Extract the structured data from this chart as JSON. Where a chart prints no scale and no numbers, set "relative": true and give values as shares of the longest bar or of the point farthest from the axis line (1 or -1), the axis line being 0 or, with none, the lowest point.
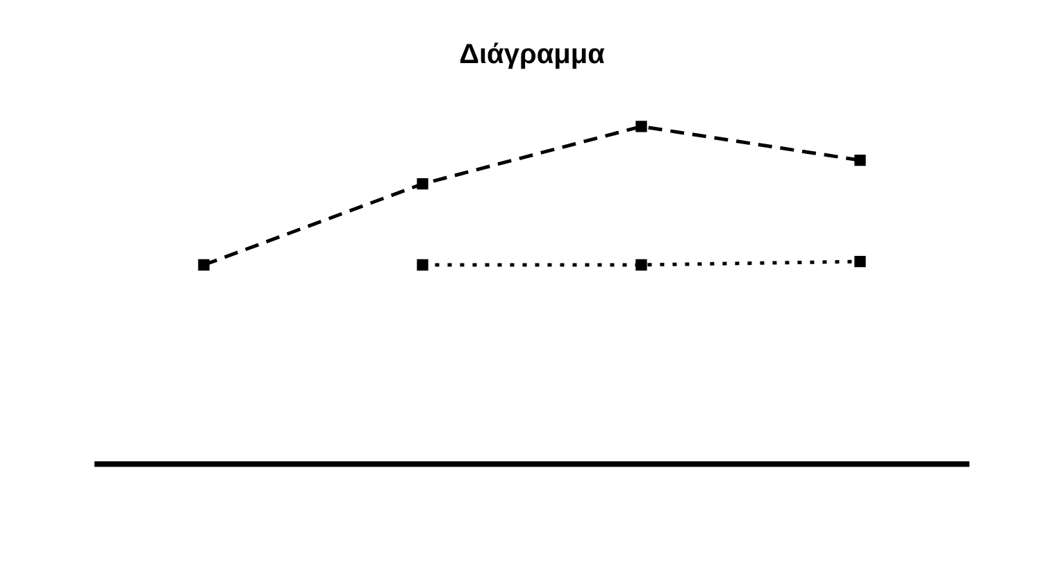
{
  "chart_data": {
    "type": "line",
    "title": "Διάγραμμα",
    "relative": true,
    "categories": [
      null,
      null,
      null,
      null
    ],
    "marker": "square",
    "series": [
      {
        "color": "#000000",
        "line_style": "dashed",
        "values": [
          0.59,
          0.83,
          1,
          0.9
        ]
      },
      {
        "color": "#000000",
        "line_style": "dotted",
        "values": [
          null,
          0.59,
          0.59,
          0.6
        ]
      }
    ]
  }
}
